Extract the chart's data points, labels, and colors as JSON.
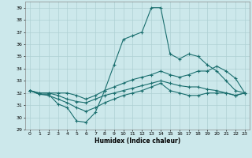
{
  "title": "",
  "xlabel": "Humidex (Indice chaleur)",
  "ylabel": "",
  "xlim": [
    -0.5,
    23.5
  ],
  "ylim": [
    29,
    39.5
  ],
  "yticks": [
    29,
    30,
    31,
    32,
    33,
    34,
    35,
    36,
    37,
    38,
    39
  ],
  "xticks": [
    0,
    1,
    2,
    3,
    4,
    5,
    6,
    7,
    8,
    9,
    10,
    11,
    12,
    13,
    14,
    15,
    16,
    17,
    18,
    19,
    20,
    21,
    22,
    23
  ],
  "bg_color": "#cce8eb",
  "grid_color": "#aed0d4",
  "line_color": "#1a6e6e",
  "lines": [
    {
      "x": [
        0,
        1,
        2,
        3,
        4,
        5,
        6,
        7,
        8,
        9,
        10,
        11,
        12,
        13,
        14,
        15,
        16,
        17,
        18,
        19,
        20,
        21,
        22,
        23
      ],
      "y": [
        32.2,
        31.9,
        31.9,
        31.1,
        30.8,
        29.7,
        29.6,
        30.4,
        32.2,
        34.3,
        36.4,
        36.7,
        37.0,
        39.0,
        39.0,
        35.2,
        34.8,
        35.2,
        35.0,
        34.3,
        33.8,
        33.0,
        32.2,
        32.0
      ]
    },
    {
      "x": [
        0,
        1,
        2,
        3,
        4,
        5,
        6,
        7,
        8,
        9,
        10,
        11,
        12,
        13,
        14,
        15,
        16,
        17,
        18,
        19,
        20,
        21,
        22,
        23
      ],
      "y": [
        32.2,
        32.0,
        32.0,
        32.0,
        32.0,
        31.8,
        31.5,
        31.8,
        32.2,
        32.5,
        32.8,
        33.1,
        33.3,
        33.5,
        33.8,
        33.5,
        33.3,
        33.5,
        33.8,
        33.8,
        34.2,
        33.8,
        33.2,
        32.0
      ]
    },
    {
      "x": [
        0,
        1,
        2,
        3,
        4,
        5,
        6,
        7,
        8,
        9,
        10,
        11,
        12,
        13,
        14,
        15,
        16,
        17,
        18,
        19,
        20,
        21,
        22,
        23
      ],
      "y": [
        32.2,
        32.0,
        32.0,
        31.8,
        31.5,
        31.3,
        31.2,
        31.5,
        31.8,
        32.0,
        32.2,
        32.4,
        32.6,
        32.8,
        33.0,
        32.8,
        32.6,
        32.5,
        32.5,
        32.3,
        32.2,
        32.0,
        31.8,
        32.0
      ]
    },
    {
      "x": [
        0,
        1,
        2,
        3,
        4,
        5,
        6,
        7,
        8,
        9,
        10,
        11,
        12,
        13,
        14,
        15,
        16,
        17,
        18,
        19,
        20,
        21,
        22,
        23
      ],
      "y": [
        32.2,
        31.9,
        31.8,
        31.5,
        31.2,
        30.8,
        30.5,
        30.8,
        31.2,
        31.5,
        31.8,
        32.0,
        32.2,
        32.5,
        32.8,
        32.2,
        32.0,
        31.8,
        31.8,
        32.0,
        32.0,
        32.0,
        31.8,
        32.0
      ]
    }
  ]
}
